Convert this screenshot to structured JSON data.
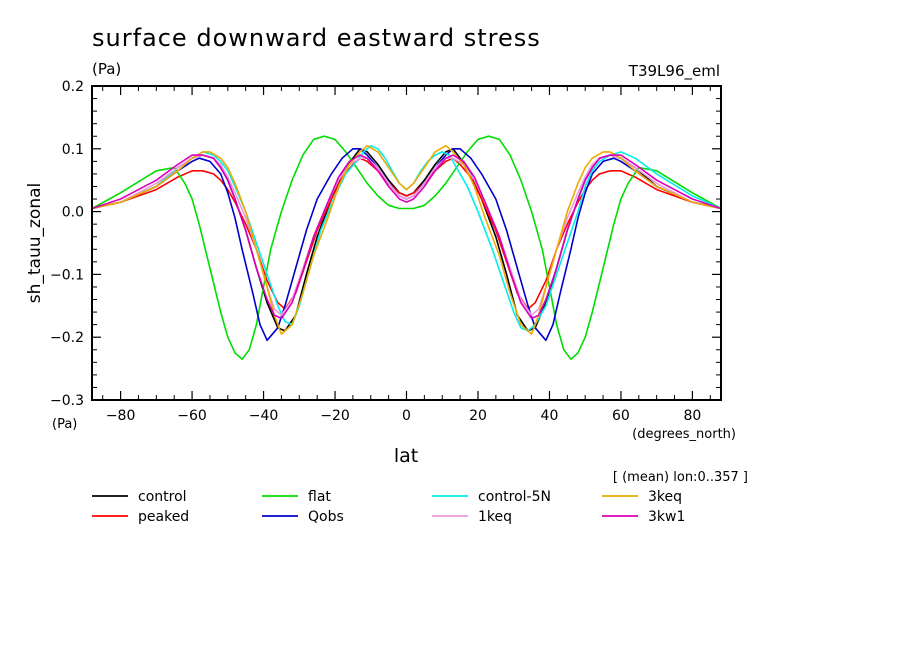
{
  "chart_data": {
    "type": "line",
    "title": "surface downward eastward stress",
    "units": "(Pa)",
    "subtitle_right": "T39L96_eml",
    "ylabel": "sh_tauu_zonal",
    "xlabel": "lat",
    "x_units": "(degrees_north)",
    "y_units_bottom": "(Pa)",
    "note": "[ (mean) lon:0..357 ]",
    "xlim": [
      -88,
      88
    ],
    "ylim": [
      -0.3,
      0.2
    ],
    "x_ticks": [
      -80,
      -60,
      -40,
      -20,
      0,
      20,
      40,
      60,
      80
    ],
    "x_tick_labels": [
      "−80",
      "−60",
      "−40",
      "−20",
      "0",
      "20",
      "40",
      "60",
      "80"
    ],
    "y_ticks": [
      -0.3,
      -0.2,
      -0.1,
      0.0,
      0.1,
      0.2
    ],
    "y_tick_labels": [
      "−0.3",
      "−0.2",
      "−0.1",
      "0.0",
      "0.1",
      "0.2"
    ],
    "legend_placement": "bottom",
    "series": [
      {
        "name": "control",
        "color": "#000000",
        "x": [
          -88,
          -80,
          -70,
          -64,
          -60,
          -57,
          -54,
          -52,
          -50,
          -48,
          -45,
          -42,
          -39,
          -36,
          -34,
          -31,
          -28,
          -25,
          -21,
          -18,
          -15,
          -13,
          -11,
          -8,
          -5,
          -2,
          0,
          2,
          5,
          8,
          11,
          13,
          15,
          18,
          21,
          25,
          28,
          31,
          34,
          36,
          39,
          42,
          45,
          48,
          50,
          52,
          54,
          57,
          60,
          64,
          70,
          80,
          88
        ],
        "y": [
          0.005,
          0.015,
          0.04,
          0.07,
          0.085,
          0.09,
          0.085,
          0.07,
          0.05,
          0.02,
          -0.03,
          -0.09,
          -0.145,
          -0.185,
          -0.19,
          -0.165,
          -0.1,
          -0.04,
          0.02,
          0.06,
          0.085,
          0.1,
          0.095,
          0.075,
          0.05,
          0.03,
          0.025,
          0.03,
          0.05,
          0.075,
          0.095,
          0.1,
          0.085,
          0.06,
          0.02,
          -0.04,
          -0.1,
          -0.165,
          -0.19,
          -0.185,
          -0.145,
          -0.09,
          -0.03,
          0.02,
          0.05,
          0.07,
          0.085,
          0.09,
          0.085,
          0.07,
          0.04,
          0.015,
          0.005
        ]
      },
      {
        "name": "peaked",
        "color": "#ff0000",
        "x": [
          -88,
          -80,
          -70,
          -64,
          -60,
          -57,
          -54,
          -52,
          -50,
          -48,
          -45,
          -42,
          -39,
          -36,
          -34,
          -31,
          -28,
          -25,
          -21,
          -18,
          -15,
          -13,
          -11,
          -8,
          -5,
          -2,
          0,
          2,
          5,
          8,
          11,
          13,
          15,
          18,
          21,
          25,
          28,
          31,
          34,
          36,
          39,
          42,
          45,
          48,
          50,
          52,
          54,
          57,
          60,
          64,
          70,
          80,
          88
        ],
        "y": [
          0.005,
          0.015,
          0.035,
          0.055,
          0.065,
          0.065,
          0.06,
          0.05,
          0.035,
          0.015,
          -0.02,
          -0.06,
          -0.11,
          -0.145,
          -0.155,
          -0.13,
          -0.08,
          -0.03,
          0.02,
          0.055,
          0.075,
          0.085,
          0.08,
          0.065,
          0.045,
          0.03,
          0.025,
          0.03,
          0.045,
          0.065,
          0.08,
          0.085,
          0.075,
          0.055,
          0.02,
          -0.03,
          -0.08,
          -0.13,
          -0.155,
          -0.145,
          -0.11,
          -0.06,
          -0.02,
          0.015,
          0.035,
          0.05,
          0.06,
          0.065,
          0.065,
          0.055,
          0.035,
          0.015,
          0.005
        ]
      },
      {
        "name": "flat",
        "color": "#00dd00",
        "x": [
          -88,
          -80,
          -70,
          -65,
          -62,
          -60,
          -58,
          -55,
          -52,
          -50,
          -48,
          -46,
          -44,
          -42,
          -40,
          -38,
          -35,
          -32,
          -29,
          -26,
          -23,
          -20,
          -17,
          -14,
          -11,
          -8,
          -5,
          -2,
          0,
          2,
          5,
          8,
          11,
          14,
          17,
          20,
          23,
          26,
          29,
          32,
          35,
          38,
          40,
          42,
          44,
          46,
          48,
          50,
          52,
          55,
          58,
          60,
          62,
          65,
          70,
          80,
          88
        ],
        "y": [
          0.005,
          0.03,
          0.065,
          0.07,
          0.045,
          0.02,
          -0.02,
          -0.09,
          -0.16,
          -0.2,
          -0.225,
          -0.235,
          -0.22,
          -0.18,
          -0.12,
          -0.06,
          0.0,
          0.05,
          0.09,
          0.115,
          0.12,
          0.115,
          0.095,
          0.07,
          0.045,
          0.025,
          0.01,
          0.005,
          0.005,
          0.005,
          0.01,
          0.025,
          0.045,
          0.07,
          0.095,
          0.115,
          0.12,
          0.115,
          0.09,
          0.05,
          0.0,
          -0.06,
          -0.12,
          -0.18,
          -0.22,
          -0.235,
          -0.225,
          -0.2,
          -0.16,
          -0.09,
          -0.02,
          0.02,
          0.045,
          0.07,
          0.065,
          0.03,
          0.005
        ]
      },
      {
        "name": "Qobs",
        "color": "#0000cc",
        "x": [
          -88,
          -80,
          -70,
          -64,
          -60,
          -58,
          -55,
          -52,
          -50,
          -48,
          -46,
          -43,
          -41,
          -39,
          -36,
          -34,
          -31,
          -28,
          -25,
          -21,
          -18,
          -15,
          -13,
          -11,
          -8,
          -5,
          -2,
          0,
          2,
          5,
          8,
          11,
          13,
          15,
          18,
          21,
          25,
          28,
          31,
          34,
          36,
          39,
          41,
          43,
          46,
          48,
          50,
          52,
          55,
          58,
          60,
          64,
          70,
          80,
          88
        ],
        "y": [
          0.005,
          0.015,
          0.04,
          0.065,
          0.08,
          0.085,
          0.08,
          0.06,
          0.03,
          -0.01,
          -0.06,
          -0.13,
          -0.18,
          -0.205,
          -0.185,
          -0.15,
          -0.09,
          -0.03,
          0.02,
          0.06,
          0.085,
          0.1,
          0.1,
          0.09,
          0.07,
          0.045,
          0.025,
          0.02,
          0.025,
          0.045,
          0.07,
          0.09,
          0.1,
          0.1,
          0.085,
          0.06,
          0.02,
          -0.03,
          -0.09,
          -0.15,
          -0.185,
          -0.205,
          -0.18,
          -0.13,
          -0.06,
          -0.01,
          0.03,
          0.06,
          0.08,
          0.085,
          0.08,
          0.065,
          0.04,
          0.015,
          0.005
        ]
      },
      {
        "name": "control-5N",
        "color": "#00eeee",
        "x": [
          -88,
          -80,
          -70,
          -64,
          -60,
          -57,
          -54,
          -52,
          -50,
          -48,
          -45,
          -42,
          -39,
          -36,
          -34,
          -32,
          -30,
          -27,
          -24,
          -20,
          -17,
          -14,
          -12,
          -10,
          -8,
          -6,
          -4,
          -2,
          0,
          2,
          4,
          6,
          8,
          10,
          12,
          14,
          17,
          20,
          24,
          27,
          30,
          32,
          34,
          36,
          39,
          42,
          45,
          48,
          50,
          52,
          54,
          57,
          60,
          64,
          70,
          80,
          88
        ],
        "y": [
          0.005,
          0.015,
          0.04,
          0.07,
          0.085,
          0.095,
          0.09,
          0.08,
          0.065,
          0.04,
          0.0,
          -0.05,
          -0.1,
          -0.15,
          -0.175,
          -0.18,
          -0.15,
          -0.09,
          -0.03,
          0.025,
          0.06,
          0.08,
          0.095,
          0.105,
          0.1,
          0.085,
          0.065,
          0.045,
          0.035,
          0.045,
          0.065,
          0.08,
          0.09,
          0.095,
          0.09,
          0.07,
          0.04,
          0.0,
          -0.06,
          -0.11,
          -0.16,
          -0.185,
          -0.19,
          -0.18,
          -0.15,
          -0.1,
          -0.05,
          0.0,
          0.04,
          0.065,
          0.08,
          0.09,
          0.095,
          0.085,
          0.06,
          0.025,
          0.005
        ]
      },
      {
        "name": "1keq",
        "color": "#ee99dd",
        "x": [
          -88,
          -80,
          -70,
          -64,
          -60,
          -57,
          -54,
          -52,
          -50,
          -48,
          -45,
          -42,
          -39,
          -37,
          -35,
          -32,
          -29,
          -26,
          -22,
          -19,
          -16,
          -13,
          -11,
          -8,
          -5,
          -2,
          0,
          2,
          5,
          8,
          11,
          13,
          16,
          19,
          22,
          26,
          29,
          32,
          35,
          37,
          39,
          42,
          45,
          48,
          50,
          52,
          54,
          57,
          60,
          64,
          70,
          80,
          88
        ],
        "y": [
          0.005,
          0.015,
          0.045,
          0.07,
          0.085,
          0.09,
          0.085,
          0.075,
          0.055,
          0.03,
          -0.01,
          -0.06,
          -0.12,
          -0.155,
          -0.165,
          -0.14,
          -0.09,
          -0.04,
          0.015,
          0.05,
          0.075,
          0.085,
          0.085,
          0.07,
          0.045,
          0.025,
          0.02,
          0.025,
          0.045,
          0.07,
          0.085,
          0.085,
          0.075,
          0.05,
          0.015,
          -0.04,
          -0.09,
          -0.14,
          -0.165,
          -0.155,
          -0.12,
          -0.06,
          -0.01,
          0.03,
          0.055,
          0.075,
          0.085,
          0.09,
          0.085,
          0.07,
          0.045,
          0.015,
          0.005
        ]
      },
      {
        "name": "3keq",
        "color": "#eeaa00",
        "x": [
          -88,
          -80,
          -70,
          -64,
          -60,
          -57,
          -55,
          -52,
          -50,
          -48,
          -45,
          -42,
          -39,
          -37,
          -35,
          -32,
          -29,
          -26,
          -22,
          -19,
          -16,
          -13,
          -11,
          -8,
          -5,
          -2,
          0,
          2,
          5,
          8,
          11,
          13,
          16,
          19,
          22,
          26,
          29,
          32,
          35,
          37,
          39,
          42,
          45,
          48,
          50,
          52,
          55,
          57,
          60,
          64,
          70,
          80,
          88
        ],
        "y": [
          0.005,
          0.015,
          0.04,
          0.065,
          0.085,
          0.095,
          0.095,
          0.085,
          0.07,
          0.045,
          0.0,
          -0.06,
          -0.12,
          -0.165,
          -0.195,
          -0.18,
          -0.13,
          -0.07,
          -0.01,
          0.04,
          0.075,
          0.095,
          0.105,
          0.095,
          0.07,
          0.045,
          0.035,
          0.045,
          0.07,
          0.095,
          0.105,
          0.095,
          0.075,
          0.04,
          -0.01,
          -0.07,
          -0.13,
          -0.18,
          -0.195,
          -0.165,
          -0.12,
          -0.06,
          0.0,
          0.045,
          0.07,
          0.085,
          0.095,
          0.095,
          0.085,
          0.065,
          0.04,
          0.015,
          0.005
        ]
      },
      {
        "name": "3kw1",
        "color": "#dd00bb",
        "x": [
          -88,
          -80,
          -70,
          -64,
          -60,
          -57,
          -54,
          -52,
          -50,
          -48,
          -45,
          -42,
          -39,
          -37,
          -35,
          -32,
          -29,
          -26,
          -22,
          -19,
          -16,
          -13,
          -11,
          -8,
          -5,
          -2,
          0,
          2,
          5,
          8,
          11,
          13,
          16,
          19,
          22,
          26,
          29,
          32,
          35,
          37,
          39,
          42,
          45,
          48,
          50,
          52,
          54,
          57,
          60,
          64,
          70,
          80,
          88
        ],
        "y": [
          0.005,
          0.02,
          0.05,
          0.075,
          0.09,
          0.09,
          0.085,
          0.07,
          0.05,
          0.02,
          -0.03,
          -0.09,
          -0.14,
          -0.165,
          -0.17,
          -0.145,
          -0.095,
          -0.04,
          0.015,
          0.055,
          0.08,
          0.09,
          0.085,
          0.065,
          0.04,
          0.02,
          0.015,
          0.02,
          0.04,
          0.065,
          0.085,
          0.09,
          0.08,
          0.055,
          0.015,
          -0.04,
          -0.095,
          -0.145,
          -0.17,
          -0.165,
          -0.14,
          -0.09,
          -0.03,
          0.02,
          0.05,
          0.07,
          0.085,
          0.09,
          0.09,
          0.075,
          0.05,
          0.02,
          0.005
        ]
      }
    ]
  }
}
